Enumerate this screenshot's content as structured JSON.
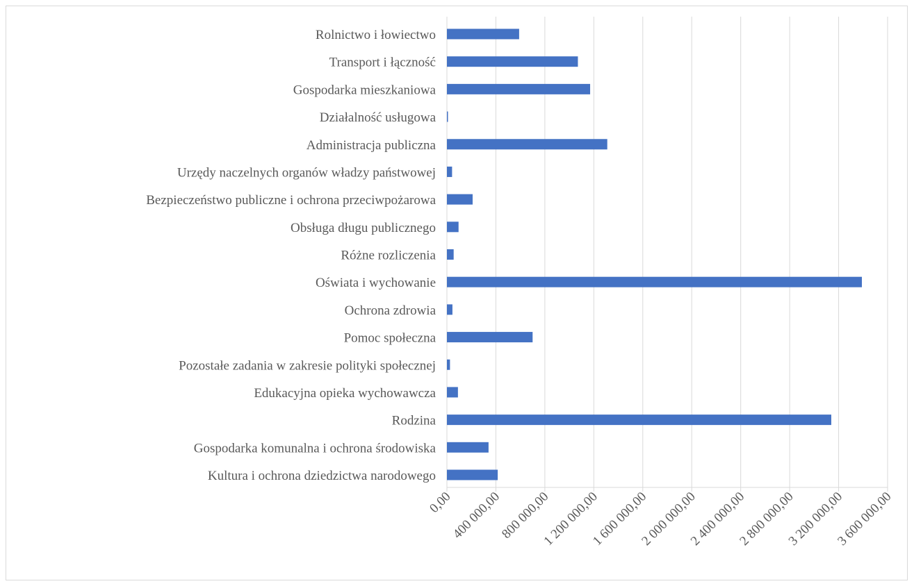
{
  "chart_data": {
    "type": "bar",
    "orientation": "horizontal",
    "title": "",
    "xlabel": "",
    "ylabel": "",
    "grid": true,
    "legend": "none",
    "bar_color": "#4472C4",
    "xlim": [
      0,
      3600000
    ],
    "x_ticks": [
      0,
      400000,
      800000,
      1200000,
      1600000,
      2000000,
      2400000,
      2800000,
      3200000,
      3600000
    ],
    "x_tick_labels": [
      "0,00",
      "400 000,00",
      "800 000,00",
      "1 200 000,00",
      "1 600 000,00",
      "2 000 000,00",
      "2 400 000,00",
      "2 800 000,00",
      "3 200 000,00",
      "3 600 000,00"
    ],
    "categories": [
      "Rolnictwo i łowiectwo",
      "Transport i łączność",
      "Gospodarka mieszkaniowa",
      "Działalność usługowa",
      "Administracja publiczna",
      "Urzędy naczelnych organów władzy państwowej",
      "Bezpieczeństwo publiczne i ochrona przeciwpożarowa",
      "Obsługa długu publicznego",
      "Różne rozliczenia",
      "Oświata i wychowanie",
      "Ochrona zdrowia",
      "Pomoc społeczna",
      "Pozostałe zadania w zakresie polityki społecznej",
      "Edukacyjna opieka wychowawcza",
      "Rodzina",
      "Gospodarka komunalna i ochrona środowiska",
      "Kultura i ochrona dziedzictwa narodowego"
    ],
    "values": [
      590000,
      1070000,
      1170000,
      5000,
      1310000,
      42000,
      210000,
      95000,
      55000,
      3390000,
      45000,
      700000,
      25000,
      90000,
      3140000,
      340000,
      415000
    ]
  }
}
